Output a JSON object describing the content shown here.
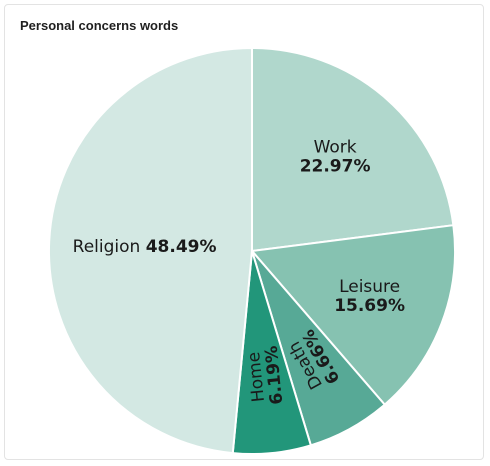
{
  "panel": {
    "title": "Personal concerns words"
  },
  "chart_data": {
    "type": "pie",
    "title": "Personal concerns words",
    "start": "12 o'clock",
    "direction": "clockwise",
    "slices": [
      {
        "label": "Work",
        "value": 22.97,
        "value_text": "22.97%",
        "color": "#b0d7cc",
        "label_layout": "stacked"
      },
      {
        "label": "Leisure",
        "value": 15.69,
        "value_text": "15.69%",
        "color": "#86c2b1",
        "label_layout": "stacked"
      },
      {
        "label": "Death",
        "value": 6.66,
        "value_text": "6.66%",
        "color": "#57a996",
        "label_layout": "rotated"
      },
      {
        "label": "Home",
        "value": 6.19,
        "value_text": "6.19%",
        "color": "#22967a",
        "label_layout": "rotated"
      },
      {
        "label": "Religion",
        "value": 48.49,
        "value_text": "48.49%",
        "color": "#d3e8e3",
        "label_layout": "inline"
      }
    ]
  }
}
